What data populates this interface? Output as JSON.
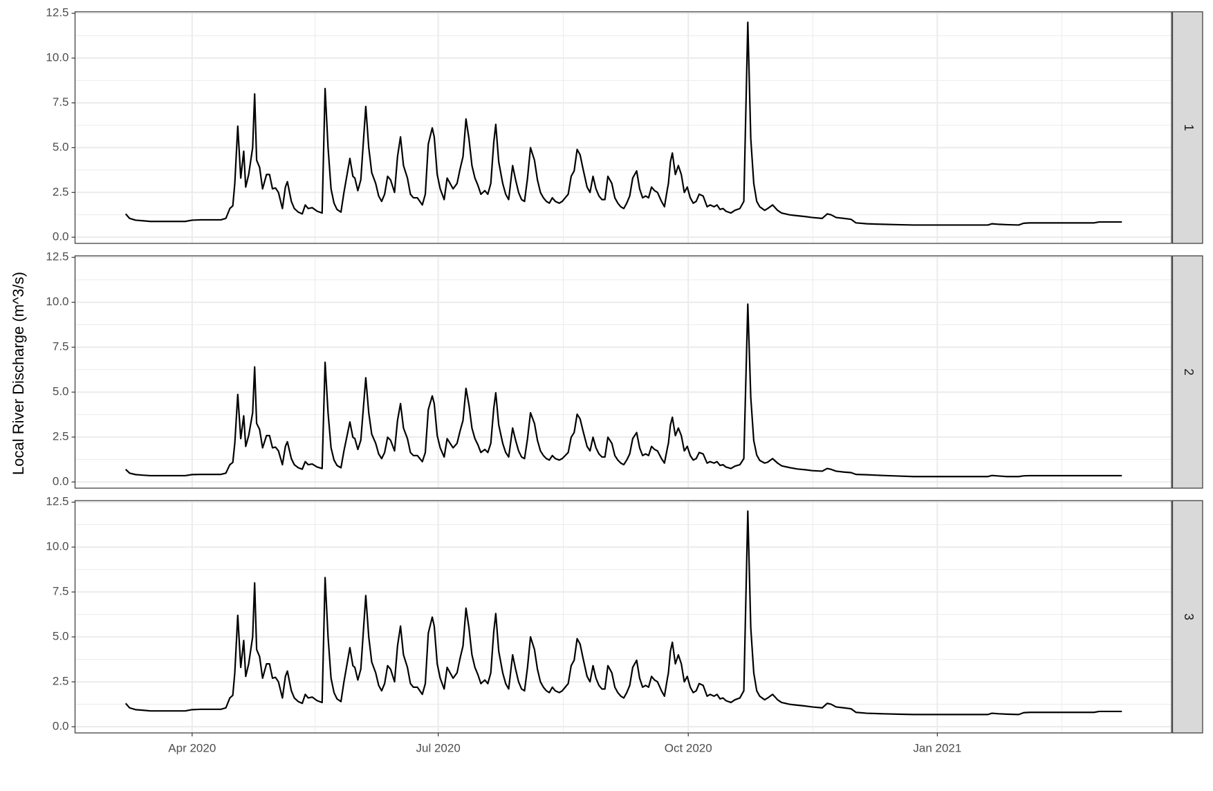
{
  "chart_data": {
    "type": "line",
    "facets": true,
    "y_label": "Local River Discharge (m^3/s)",
    "xlim": [
      2020.131,
      2021.236
    ],
    "xticks": [
      {
        "value": 2020.249,
        "label": "Apr 2020"
      },
      {
        "value": 2020.497,
        "label": "Jul 2020"
      },
      {
        "value": 2020.749,
        "label": "Oct 2020"
      },
      {
        "value": 2021,
        "label": "Jan 2021"
      }
    ],
    "ylim": [
      -0.345,
      12.586
    ],
    "yticks": [
      {
        "value": 0,
        "label": "0.0"
      },
      2.5,
      {
        "value": 5,
        "label": "5.0"
      },
      7.5,
      {
        "value": 10,
        "label": "10.0"
      },
      12.5
    ],
    "grid": true,
    "minor_grid": true,
    "x": [
      2020.182,
      2020.186,
      2020.192,
      2020.199,
      2020.207,
      2020.223,
      2020.242,
      2020.249,
      2020.258,
      2020.278,
      2020.283,
      2020.287,
      2020.29,
      2020.292,
      2020.295,
      2020.298,
      2020.301,
      2020.303,
      2020.306,
      2020.31,
      2020.312,
      2020.314,
      2020.317,
      2020.32,
      2020.324,
      2020.327,
      2020.33,
      2020.333,
      2020.336,
      2020.34,
      2020.343,
      2020.345,
      2020.349,
      2020.352,
      2020.356,
      2020.36,
      2020.363,
      2020.366,
      2020.37,
      2020.375,
      2020.38,
      2020.383,
      2020.386,
      2020.389,
      2020.392,
      2020.395,
      2020.399,
      2020.402,
      2020.408,
      2020.411,
      2020.413,
      2020.416,
      2020.419,
      2020.424,
      2020.427,
      2020.43,
      2020.434,
      2020.437,
      2020.44,
      2020.443,
      2020.446,
      2020.449,
      2020.453,
      2020.456,
      2020.459,
      2020.462,
      2020.466,
      2020.469,
      2020.472,
      2020.476,
      2020.481,
      2020.484,
      2020.487,
      2020.491,
      2020.493,
      2020.496,
      2020.499,
      2020.503,
      2020.506,
      2020.509,
      2020.512,
      2020.516,
      2020.519,
      2020.522,
      2020.525,
      2020.528,
      2020.531,
      2020.534,
      2020.537,
      2020.54,
      2020.544,
      2020.547,
      2020.55,
      2020.553,
      2020.555,
      2020.558,
      2020.562,
      2020.565,
      2020.568,
      2020.572,
      2020.575,
      2020.578,
      2020.581,
      2020.584,
      2020.587,
      2020.59,
      2020.594,
      2020.597,
      2020.6,
      2020.603,
      2020.606,
      2020.609,
      2020.612,
      2020.615,
      2020.619,
      2020.622,
      2020.625,
      2020.628,
      2020.631,
      2020.634,
      2020.637,
      2020.64,
      2020.643,
      2020.647,
      2020.65,
      2020.653,
      2020.656,
      2020.659,
      2020.662,
      2020.665,
      2020.668,
      2020.672,
      2020.675,
      2020.678,
      2020.681,
      2020.684,
      2020.687,
      2020.69,
      2020.693,
      2020.697,
      2020.7,
      2020.703,
      2020.706,
      2020.709,
      2020.712,
      2020.715,
      2020.718,
      2020.722,
      2020.725,
      2020.728,
      2020.729,
      2020.731,
      2020.733,
      2020.736,
      2020.739,
      2020.742,
      2020.745,
      2020.748,
      2020.751,
      2020.754,
      2020.757,
      2020.76,
      2020.764,
      2020.768,
      2020.771,
      2020.775,
      2020.778,
      2020.781,
      2020.784,
      2020.787,
      2020.792,
      2020.796,
      2020.801,
      2020.805,
      2020.809,
      2020.812,
      2020.815,
      2020.818,
      2020.821,
      2020.826,
      2020.829,
      2020.834,
      2020.839,
      2020.843,
      2020.851,
      2020.859,
      2020.867,
      2020.874,
      2020.884,
      2020.889,
      2020.893,
      2020.898,
      2020.906,
      2020.913,
      2020.918,
      2020.929,
      2020.945,
      2020.96,
      2020.976,
      2021.0,
      2021.023,
      2021.051,
      2021.055,
      2021.062,
      2021.07,
      2021.082,
      2021.087,
      2021.093,
      2021.116,
      2021.14,
      2021.158,
      2021.163,
      2021.186
    ],
    "series": [
      {
        "name": "1",
        "color": "#000000",
        "values": [
          1.3,
          1.05,
          0.95,
          0.92,
          0.88,
          0.88,
          0.88,
          0.95,
          0.97,
          0.97,
          1.05,
          1.6,
          1.75,
          3.0,
          6.2,
          3.3,
          4.8,
          2.8,
          3.5,
          5.0,
          8.0,
          4.3,
          3.9,
          2.7,
          3.5,
          3.5,
          2.7,
          2.75,
          2.5,
          1.6,
          2.8,
          3.1,
          2.0,
          1.6,
          1.4,
          1.3,
          1.8,
          1.6,
          1.65,
          1.45,
          1.35,
          8.3,
          5.0,
          2.7,
          1.9,
          1.55,
          1.4,
          2.5,
          4.4,
          3.4,
          3.3,
          2.6,
          3.2,
          7.3,
          5.0,
          3.6,
          3.0,
          2.3,
          2.0,
          2.4,
          3.4,
          3.2,
          2.5,
          4.5,
          5.6,
          4.0,
          3.3,
          2.4,
          2.2,
          2.2,
          1.8,
          2.4,
          5.2,
          6.1,
          5.6,
          3.5,
          2.7,
          2.1,
          3.3,
          3.0,
          2.7,
          3.0,
          3.8,
          4.5,
          6.6,
          5.5,
          4.0,
          3.3,
          2.9,
          2.4,
          2.6,
          2.4,
          3.0,
          5.3,
          6.3,
          4.2,
          3.0,
          2.4,
          2.1,
          4.0,
          3.2,
          2.5,
          2.1,
          2.0,
          3.3,
          5.0,
          4.3,
          3.2,
          2.5,
          2.2,
          2.0,
          1.9,
          2.2,
          2.0,
          1.9,
          2.0,
          2.2,
          2.4,
          3.4,
          3.7,
          4.9,
          4.6,
          3.8,
          2.8,
          2.5,
          3.4,
          2.7,
          2.3,
          2.1,
          2.1,
          3.4,
          3.0,
          2.2,
          1.9,
          1.7,
          1.6,
          1.9,
          2.3,
          3.3,
          3.7,
          2.7,
          2.2,
          2.3,
          2.2,
          2.8,
          2.6,
          2.5,
          2.0,
          1.7,
          2.7,
          3.0,
          4.2,
          4.7,
          3.5,
          4.0,
          3.5,
          2.5,
          2.8,
          2.2,
          1.9,
          2.0,
          2.4,
          2.3,
          1.7,
          1.8,
          1.7,
          1.8,
          1.55,
          1.6,
          1.45,
          1.35,
          1.5,
          1.6,
          2.0,
          12.0,
          5.5,
          3.0,
          2.0,
          1.7,
          1.5,
          1.6,
          1.8,
          1.5,
          1.35,
          1.25,
          1.2,
          1.15,
          1.1,
          1.05,
          1.3,
          1.25,
          1.1,
          1.05,
          1.0,
          0.8,
          0.75,
          0.72,
          0.7,
          0.68,
          0.68,
          0.68,
          0.68,
          0.75,
          0.72,
          0.7,
          0.68,
          0.78,
          0.8,
          0.8,
          0.8,
          0.8,
          0.85,
          0.85
        ]
      },
      {
        "name": "2",
        "color": "#000000",
        "values": [
          0.7,
          0.49,
          0.41,
          0.38,
          0.35,
          0.35,
          0.35,
          0.41,
          0.42,
          0.42,
          0.49,
          0.96,
          1.09,
          2.15,
          4.87,
          2.41,
          3.68,
          1.98,
          2.58,
          3.85,
          6.4,
          3.26,
          2.92,
          1.9,
          2.58,
          2.58,
          1.9,
          1.94,
          1.73,
          0.96,
          1.98,
          2.24,
          1.3,
          0.96,
          0.79,
          0.71,
          1.13,
          0.96,
          1.0,
          0.83,
          0.75,
          6.66,
          3.85,
          1.9,
          1.22,
          0.92,
          0.79,
          1.73,
          3.34,
          2.49,
          2.41,
          1.81,
          2.32,
          5.8,
          3.85,
          2.66,
          2.15,
          1.56,
          1.3,
          1.64,
          2.49,
          2.32,
          1.73,
          3.43,
          4.36,
          3.0,
          2.41,
          1.64,
          1.47,
          1.47,
          1.13,
          1.64,
          4.02,
          4.79,
          4.36,
          2.58,
          1.9,
          1.39,
          2.41,
          2.15,
          1.9,
          2.15,
          2.83,
          3.43,
          5.21,
          4.28,
          3.0,
          2.41,
          2.07,
          1.64,
          1.81,
          1.64,
          2.15,
          4.11,
          4.96,
          3.17,
          2.15,
          1.64,
          1.39,
          3.0,
          2.32,
          1.73,
          1.39,
          1.3,
          2.41,
          3.85,
          3.26,
          2.32,
          1.73,
          1.47,
          1.3,
          1.22,
          1.47,
          1.3,
          1.22,
          1.3,
          1.47,
          1.64,
          2.49,
          2.75,
          3.77,
          3.51,
          2.83,
          1.98,
          1.73,
          2.49,
          1.9,
          1.56,
          1.39,
          1.39,
          2.49,
          2.15,
          1.47,
          1.22,
          1.05,
          0.96,
          1.22,
          1.56,
          2.41,
          2.75,
          1.9,
          1.47,
          1.56,
          1.47,
          1.98,
          1.81,
          1.73,
          1.3,
          1.05,
          1.9,
          2.15,
          3.17,
          3.6,
          2.58,
          3.0,
          2.58,
          1.73,
          1.98,
          1.47,
          1.22,
          1.3,
          1.64,
          1.56,
          1.05,
          1.13,
          1.05,
          1.13,
          0.92,
          0.96,
          0.83,
          0.75,
          0.88,
          0.96,
          1.3,
          9.9,
          4.7,
          2.3,
          1.5,
          1.2,
          1.05,
          1.1,
          1.3,
          1.05,
          0.9,
          0.8,
          0.72,
          0.68,
          0.63,
          0.6,
          0.75,
          0.7,
          0.6,
          0.55,
          0.52,
          0.42,
          0.4,
          0.36,
          0.33,
          0.3,
          0.3,
          0.3,
          0.3,
          0.36,
          0.33,
          0.3,
          0.3,
          0.34,
          0.35,
          0.35,
          0.35,
          0.35,
          0.35,
          0.35
        ]
      },
      {
        "name": "3",
        "color": "#000000",
        "values": [
          1.3,
          1.05,
          0.95,
          0.92,
          0.88,
          0.88,
          0.88,
          0.95,
          0.97,
          0.97,
          1.05,
          1.6,
          1.75,
          3.0,
          6.2,
          3.3,
          4.8,
          2.8,
          3.5,
          5.0,
          8.0,
          4.3,
          3.9,
          2.7,
          3.5,
          3.5,
          2.7,
          2.75,
          2.5,
          1.6,
          2.8,
          3.1,
          2.0,
          1.6,
          1.4,
          1.3,
          1.8,
          1.6,
          1.65,
          1.45,
          1.35,
          8.3,
          5.0,
          2.7,
          1.9,
          1.55,
          1.4,
          2.5,
          4.4,
          3.4,
          3.3,
          2.6,
          3.2,
          7.3,
          5.0,
          3.6,
          3.0,
          2.3,
          2.0,
          2.4,
          3.4,
          3.2,
          2.5,
          4.5,
          5.6,
          4.0,
          3.3,
          2.4,
          2.2,
          2.2,
          1.8,
          2.4,
          5.2,
          6.1,
          5.6,
          3.5,
          2.7,
          2.1,
          3.3,
          3.0,
          2.7,
          3.0,
          3.8,
          4.5,
          6.6,
          5.5,
          4.0,
          3.3,
          2.9,
          2.4,
          2.6,
          2.4,
          3.0,
          5.3,
          6.3,
          4.2,
          3.0,
          2.4,
          2.1,
          4.0,
          3.2,
          2.5,
          2.1,
          2.0,
          3.3,
          5.0,
          4.3,
          3.2,
          2.5,
          2.2,
          2.0,
          1.9,
          2.2,
          2.0,
          1.9,
          2.0,
          2.2,
          2.4,
          3.4,
          3.7,
          4.9,
          4.6,
          3.8,
          2.8,
          2.5,
          3.4,
          2.7,
          2.3,
          2.1,
          2.1,
          3.4,
          3.0,
          2.2,
          1.9,
          1.7,
          1.6,
          1.9,
          2.3,
          3.3,
          3.7,
          2.7,
          2.2,
          2.3,
          2.2,
          2.8,
          2.6,
          2.5,
          2.0,
          1.7,
          2.7,
          3.0,
          4.2,
          4.7,
          3.5,
          4.0,
          3.5,
          2.5,
          2.8,
          2.2,
          1.9,
          2.0,
          2.4,
          2.3,
          1.7,
          1.8,
          1.7,
          1.8,
          1.55,
          1.6,
          1.45,
          1.35,
          1.5,
          1.6,
          2.0,
          12.0,
          5.5,
          3.0,
          2.0,
          1.7,
          1.5,
          1.6,
          1.8,
          1.5,
          1.35,
          1.25,
          1.2,
          1.15,
          1.1,
          1.05,
          1.3,
          1.25,
          1.1,
          1.05,
          1.0,
          0.8,
          0.75,
          0.72,
          0.7,
          0.68,
          0.68,
          0.68,
          0.68,
          0.75,
          0.72,
          0.7,
          0.68,
          0.78,
          0.8,
          0.8,
          0.8,
          0.8,
          0.85,
          0.85
        ]
      }
    ]
  }
}
